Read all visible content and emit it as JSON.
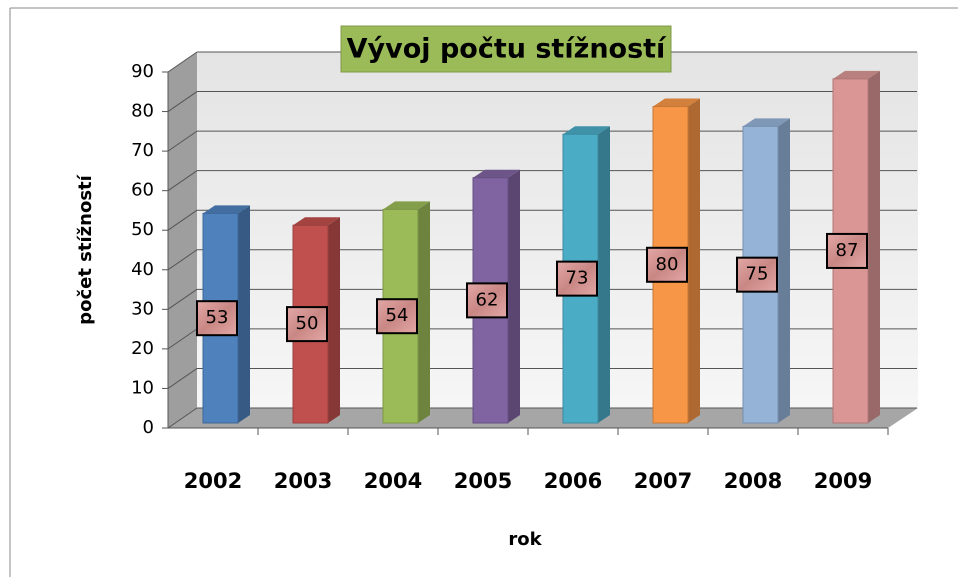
{
  "chart_data": {
    "type": "bar3d",
    "title": "Vývoj počtu stížností",
    "x_label": "rok",
    "y_label": "počet stížností",
    "categories": [
      "2002",
      "2003",
      "2004",
      "2005",
      "2006",
      "2007",
      "2008",
      "2009"
    ],
    "values": [
      53,
      50,
      54,
      62,
      73,
      80,
      75,
      87
    ],
    "colors": [
      "#4f81bd",
      "#c0504d",
      "#9bbb59",
      "#8064a2",
      "#4bacc6",
      "#f79646",
      "#95b3d7",
      "#d99694"
    ],
    "ylim": [
      0,
      90
    ],
    "yticks": [
      0,
      10,
      20,
      30,
      40,
      50,
      60,
      70,
      80,
      90
    ],
    "grid": true
  }
}
